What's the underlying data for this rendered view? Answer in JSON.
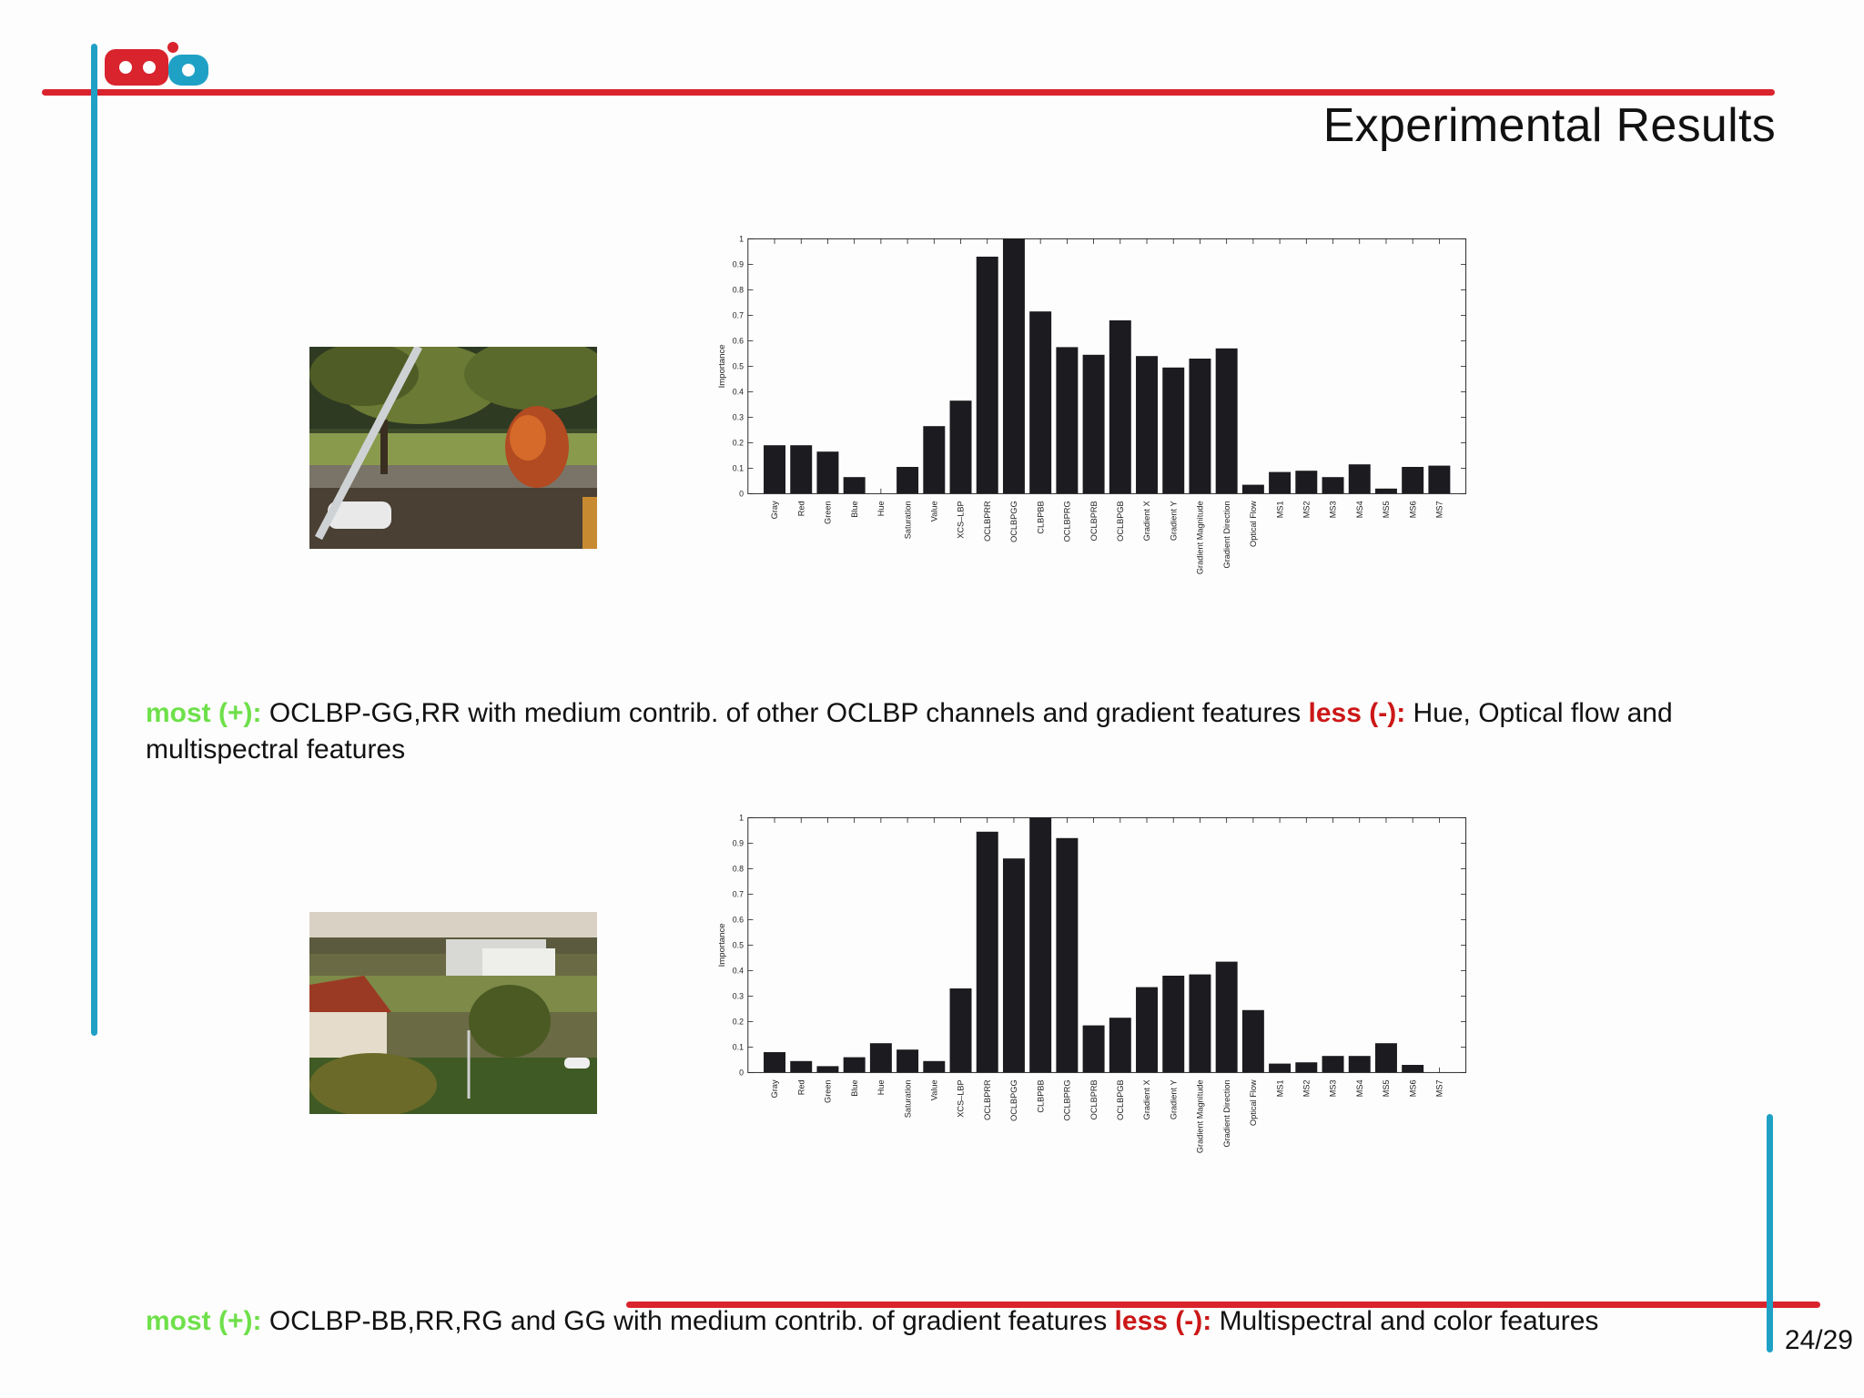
{
  "slide": {
    "title": "Experimental Results",
    "page_number": "24/29"
  },
  "captions": [
    {
      "most_label": "most (+):",
      "most_text": " OCLBP-GG,RR with medium contrib. of other OCLBP channels and gradient features ",
      "less_label": "less (-):",
      "less_text": " Hue, Optical flow and multispectral features"
    },
    {
      "most_label": "most (+):",
      "most_text": " OCLBP-BB,RR,RG and GG with medium contrib. of gradient features ",
      "less_label": "less (-):",
      "less_text": " Multispectral and color features"
    }
  ],
  "colors": {
    "red": "#d9232d",
    "blue": "#1fa1c6",
    "most": "#6ee04a",
    "less": "#cc1717",
    "bar": "#1c1b1f"
  },
  "icons": {
    "logo": "lab-logo-icon"
  },
  "chart_data": [
    {
      "type": "bar",
      "title": "",
      "xlabel": "",
      "ylabel": "Importance",
      "ylim": [
        0,
        1
      ],
      "yticks": [
        "0",
        "0.1",
        "0.2",
        "0.3",
        "0.4",
        "0.5",
        "0.6",
        "0.7",
        "0.8",
        "0.9",
        "1"
      ],
      "categories": [
        "Gray",
        "Red",
        "Green",
        "Blue",
        "Hue",
        "Saturation",
        "Value",
        "XCS–LBP",
        "OCLBPRR",
        "OCLBPGG",
        "CLBPBB",
        "OCLBPRG",
        "OCLBPRB",
        "OCLBPGB",
        "Gradient X",
        "Gradient Y",
        "Gradient Magnitude",
        "Gradient Direction",
        "Optical Flow",
        "MS1",
        "MS2",
        "MS3",
        "MS4",
        "MS5",
        "MS6",
        "MS7"
      ],
      "values": [
        0.19,
        0.19,
        0.165,
        0.065,
        0.0,
        0.105,
        0.265,
        0.365,
        0.93,
        1.0,
        0.715,
        0.575,
        0.545,
        0.68,
        0.54,
        0.495,
        0.53,
        0.57,
        0.035,
        0.085,
        0.09,
        0.065,
        0.115,
        0.02,
        0.105,
        0.11
      ],
      "grid": false
    },
    {
      "type": "bar",
      "title": "",
      "xlabel": "",
      "ylabel": "Importance",
      "ylim": [
        0,
        1
      ],
      "yticks": [
        "0",
        "0.1",
        "0.2",
        "0.3",
        "0.4",
        "0.5",
        "0.6",
        "0.7",
        "0.8",
        "0.9",
        "1"
      ],
      "categories": [
        "Gray",
        "Red",
        "Green",
        "Blue",
        "Hue",
        "Saturation",
        "Value",
        "XCS–LBP",
        "OCLBPRR",
        "OCLBPGG",
        "CLBPBB",
        "OCLBPRG",
        "OCLBPRB",
        "OCLBPGB",
        "Gradient X",
        "Gradient Y",
        "Gradient Magnitude",
        "Gradient Direction",
        "Optical Flow",
        "MS1",
        "MS2",
        "MS3",
        "MS4",
        "MS5",
        "MS6",
        "MS7"
      ],
      "values": [
        0.08,
        0.045,
        0.025,
        0.06,
        0.115,
        0.09,
        0.045,
        0.33,
        0.945,
        0.84,
        1.0,
        0.92,
        0.185,
        0.215,
        0.335,
        0.38,
        0.385,
        0.435,
        0.245,
        0.035,
        0.04,
        0.065,
        0.065,
        0.115,
        0.03,
        0.0
      ],
      "grid": false
    }
  ]
}
